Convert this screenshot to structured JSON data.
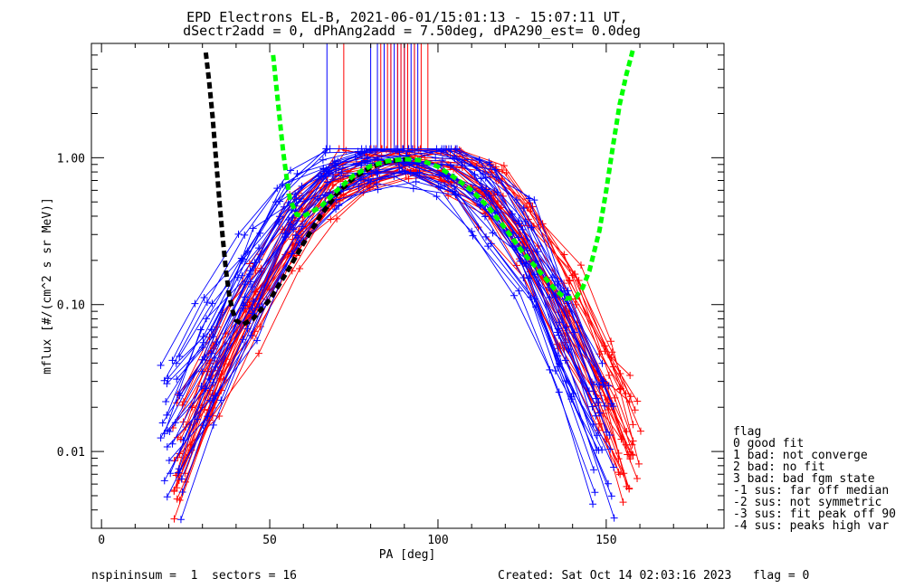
{
  "chart_data": {
    "type": "scatter",
    "title": "EPD Electrons EL-B, 2021-06-01/15:01:13 - 15:07:11 UT,",
    "subtitle": "dSectr2add = 0, dPhAng2add = 7.50deg, dPA290_est=   0.0deg",
    "xlabel": "PA [deg]",
    "ylabel": "mflux [#/(cm^2 s sr MeV)]",
    "xlim": [
      -3,
      185
    ],
    "ylim": [
      0.003,
      6
    ],
    "yscale": "log",
    "xticks": [
      0,
      50,
      100,
      150
    ],
    "xtick_labels": [
      "0",
      "50",
      "100",
      "150"
    ],
    "yticks": [
      0.01,
      0.1,
      1.0
    ],
    "ytick_labels": [
      "0.01",
      "0.10",
      "1.00"
    ],
    "grid": false,
    "colors": {
      "red_series": "#ff0000",
      "blue_series": "#0000ff",
      "black_fit": "#000000",
      "green_fit": "#00ff00"
    },
    "red_profiles": {
      "description_free": true,
      "count": 30,
      "pa": [
        24,
        34,
        46,
        58,
        70,
        81,
        93,
        104,
        116,
        127,
        139,
        150,
        157
      ],
      "flux_typical": [
        0.011,
        0.035,
        0.11,
        0.33,
        0.68,
        0.87,
        0.95,
        0.87,
        0.6,
        0.28,
        0.1,
        0.03,
        0.012
      ],
      "spread_decades": 0.28
    },
    "blue_profiles": {
      "count": 30,
      "pa": [
        21,
        32,
        44,
        56,
        68,
        79,
        91,
        103,
        114,
        126,
        137,
        149
      ],
      "flux_typical": [
        0.012,
        0.04,
        0.14,
        0.4,
        0.72,
        0.88,
        0.92,
        0.83,
        0.52,
        0.22,
        0.06,
        0.013
      ],
      "spread_decades": 0.33
    },
    "spike_lines": {
      "red_pa": [
        72,
        83,
        85,
        86,
        88,
        89,
        90,
        91,
        93,
        95,
        97
      ],
      "blue_pa": [
        67,
        80,
        82,
        84,
        86,
        87,
        88,
        89,
        90,
        91,
        92,
        93,
        94
      ],
      "from": 1.1,
      "to": 6
    },
    "fit_black": {
      "x": [
        31,
        32,
        33,
        34,
        35,
        36,
        37,
        38,
        39,
        40,
        42,
        45,
        50,
        55,
        60,
        65,
        70,
        75,
        80,
        85,
        90,
        92
      ],
      "y": [
        5.2,
        3.3,
        1.9,
        1.0,
        0.52,
        0.29,
        0.17,
        0.115,
        0.09,
        0.078,
        0.073,
        0.08,
        0.108,
        0.165,
        0.26,
        0.4,
        0.57,
        0.73,
        0.86,
        0.94,
        0.975,
        0.98
      ]
    },
    "fit_green": {
      "x": [
        51,
        52,
        53,
        54,
        55,
        56,
        58,
        60,
        65,
        70,
        75,
        80,
        85,
        90,
        95,
        100,
        105,
        110,
        115,
        120,
        125,
        130,
        135,
        138,
        141,
        143,
        145,
        148,
        150,
        152,
        154,
        156,
        158
      ],
      "y": [
        5.0,
        3.0,
        1.8,
        1.1,
        0.74,
        0.52,
        0.41,
        0.4,
        0.46,
        0.6,
        0.76,
        0.88,
        0.95,
        0.98,
        0.96,
        0.87,
        0.73,
        0.6,
        0.46,
        0.33,
        0.23,
        0.17,
        0.125,
        0.11,
        0.112,
        0.13,
        0.17,
        0.32,
        0.6,
        1.2,
        2.3,
        3.7,
        5.5
      ]
    },
    "legend": {
      "title": "flag",
      "placement": "right",
      "entries": [
        " 0 good fit",
        " 1 bad: not converge",
        " 2 bad: no fit",
        " 3 bad: bad fgm state",
        "-1 sus: far off median",
        "-2 sus: not symmetric",
        "-3 sus: fit peak off 90",
        "-4 sus: peaks high var"
      ]
    }
  },
  "footer": {
    "left": "nspininsum =  1  sectors = 16",
    "right": "Created: Sat Oct 14 02:03:16 2023   flag = 0"
  }
}
